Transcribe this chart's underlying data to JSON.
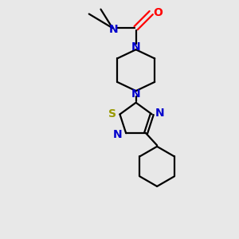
{
  "bg_color": "#e8e8e8",
  "bond_color": "#000000",
  "N_color": "#0000cc",
  "O_color": "#ff0000",
  "S_color": "#999900",
  "line_width": 1.6,
  "font_size": 8,
  "figsize": [
    3.0,
    3.0
  ],
  "dpi": 100,
  "xlim": [
    0,
    10
  ],
  "ylim": [
    0,
    10
  ]
}
